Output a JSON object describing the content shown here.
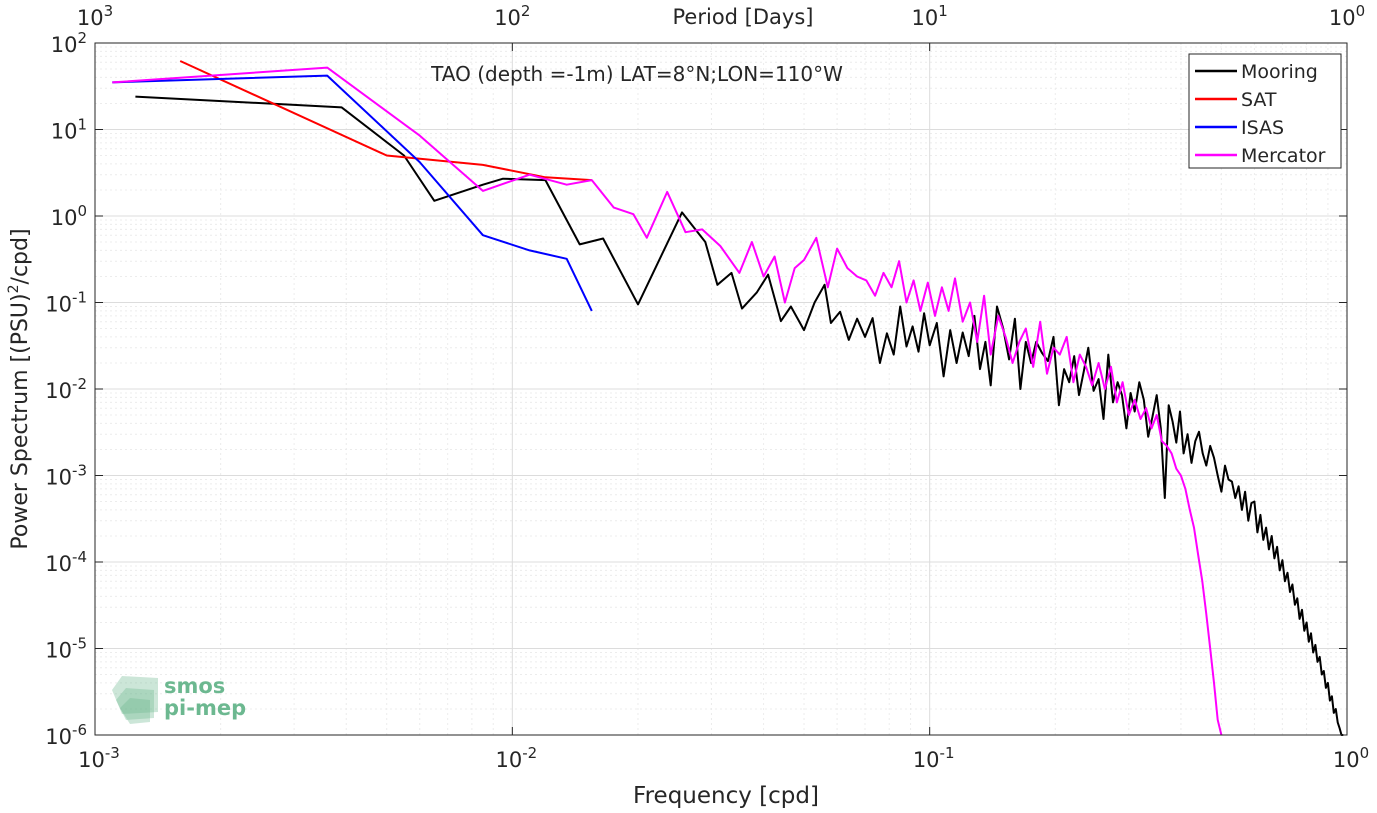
{
  "chart_data": {
    "type": "line",
    "title": "TAO (depth =-1m) LAT=8°N;LON=110°W",
    "xlabel": "Frequency [cpd]",
    "ylabel": "Power Spectrum [(PSU)",
    "ylabel_sup": "2",
    "ylabel_tail": "/cpd]",
    "top_xlabel": "Period [Days]",
    "x_scale": "log",
    "y_scale": "log",
    "xlim": [
      0.001,
      1
    ],
    "ylim": [
      1e-06,
      100
    ],
    "grid": true,
    "legend_position": "top-right",
    "x_ticks": [
      {
        "value": 0.001,
        "base": "10",
        "exp": "-3"
      },
      {
        "value": 0.01,
        "base": "10",
        "exp": "-2"
      },
      {
        "value": 0.1,
        "base": "10",
        "exp": "-1"
      },
      {
        "value": 1,
        "base": "10",
        "exp": "0"
      }
    ],
    "y_ticks": [
      {
        "value": 1e-06,
        "base": "10",
        "exp": "-6"
      },
      {
        "value": 1e-05,
        "base": "10",
        "exp": "-5"
      },
      {
        "value": 0.0001,
        "base": "10",
        "exp": "-4"
      },
      {
        "value": 0.001,
        "base": "10",
        "exp": "-3"
      },
      {
        "value": 0.01,
        "base": "10",
        "exp": "-2"
      },
      {
        "value": 0.1,
        "base": "10",
        "exp": "-1"
      },
      {
        "value": 1,
        "base": "10",
        "exp": "0"
      },
      {
        "value": 10,
        "base": "10",
        "exp": "1"
      },
      {
        "value": 100,
        "base": "10",
        "exp": "2"
      }
    ],
    "top_ticks": [
      {
        "value": 0.001,
        "base": "10",
        "exp": "3"
      },
      {
        "value": 0.01,
        "base": "10",
        "exp": "2"
      },
      {
        "value": 0.1,
        "base": "10",
        "exp": "1"
      },
      {
        "value": 1,
        "base": "10",
        "exp": "0"
      }
    ],
    "series": [
      {
        "name": "Mooring",
        "color": "#000000",
        "x": [
          0.00125,
          0.0039,
          0.0055,
          0.0065,
          0.0085,
          0.0095,
          0.012,
          0.0145,
          0.0165,
          0.02,
          0.0255,
          0.029,
          0.031,
          0.0335,
          0.0355,
          0.0385,
          0.041,
          0.044,
          0.0465,
          0.05,
          0.053,
          0.056,
          0.058,
          0.061,
          0.064,
          0.067,
          0.07,
          0.073,
          0.076,
          0.079,
          0.082,
          0.085,
          0.088,
          0.091,
          0.094,
          0.097,
          0.1,
          0.104,
          0.108,
          0.112,
          0.116,
          0.12,
          0.124,
          0.128,
          0.132,
          0.136,
          0.14,
          0.145,
          0.15,
          0.155,
          0.16,
          0.165,
          0.17,
          0.175,
          0.18,
          0.186,
          0.192,
          0.198,
          0.204,
          0.21,
          0.216,
          0.222,
          0.228,
          0.234,
          0.24,
          0.247,
          0.254,
          0.261,
          0.268,
          0.275,
          0.282,
          0.289,
          0.296,
          0.303,
          0.31,
          0.318,
          0.326,
          0.334,
          0.342,
          0.35,
          0.358,
          0.366,
          0.374,
          0.382,
          0.39,
          0.398,
          0.406,
          0.415,
          0.424,
          0.433,
          0.442,
          0.451,
          0.46,
          0.47,
          0.48,
          0.49,
          0.5,
          0.51,
          0.52,
          0.53,
          0.54,
          0.55,
          0.56,
          0.57,
          0.58,
          0.59,
          0.6,
          0.61,
          0.62,
          0.63,
          0.64,
          0.65,
          0.66,
          0.67,
          0.68,
          0.69,
          0.7,
          0.71,
          0.72,
          0.73,
          0.74,
          0.75,
          0.76,
          0.77,
          0.78,
          0.79,
          0.8,
          0.81,
          0.82,
          0.83,
          0.84,
          0.85,
          0.86,
          0.87,
          0.88,
          0.89,
          0.9,
          0.91,
          0.92,
          0.93,
          0.94,
          0.95,
          0.96,
          0.97,
          0.98
        ],
        "y": [
          24,
          18,
          5,
          1.5,
          2.3,
          2.7,
          2.6,
          0.47,
          0.55,
          0.095,
          1.1,
          0.5,
          0.16,
          0.22,
          0.085,
          0.13,
          0.21,
          0.061,
          0.09,
          0.048,
          0.1,
          0.16,
          0.058,
          0.078,
          0.037,
          0.065,
          0.04,
          0.066,
          0.02,
          0.044,
          0.025,
          0.09,
          0.031,
          0.053,
          0.027,
          0.075,
          0.032,
          0.058,
          0.014,
          0.048,
          0.02,
          0.045,
          0.024,
          0.07,
          0.017,
          0.035,
          0.011,
          0.09,
          0.05,
          0.022,
          0.065,
          0.01,
          0.035,
          0.02,
          0.035,
          0.026,
          0.021,
          0.04,
          0.0065,
          0.017,
          0.012,
          0.024,
          0.0085,
          0.016,
          0.03,
          0.0095,
          0.013,
          0.0045,
          0.025,
          0.007,
          0.012,
          0.0085,
          0.0035,
          0.009,
          0.0055,
          0.012,
          0.0075,
          0.0028,
          0.0048,
          0.0085,
          0.0035,
          0.00055,
          0.0065,
          0.0042,
          0.0024,
          0.0055,
          0.0018,
          0.003,
          0.0014,
          0.0025,
          0.0032,
          0.0018,
          0.0013,
          0.0022,
          0.0016,
          0.001,
          0.00065,
          0.0013,
          0.0009,
          0.00085,
          0.00055,
          0.00075,
          0.0004,
          0.00065,
          0.0003,
          0.00048,
          0.0005,
          0.00022,
          0.00035,
          0.00018,
          0.00025,
          0.00014,
          0.0002,
          0.00011,
          0.00015,
          8e-05,
          0.000105,
          6e-05,
          7.5e-05,
          4.5e-05,
          5.5e-05,
          3.2e-05,
          3.8e-05,
          2.2e-05,
          2.8e-05,
          1.6e-05,
          2e-05,
          1.2e-05,
          1.5e-05,
          9e-06,
          1.1e-05,
          7e-06,
          8e-06,
          5e-06,
          5.5e-06,
          3.5e-06,
          4e-06,
          2.5e-06,
          2.8e-06,
          1.8e-06,
          2e-06,
          1.4e-06,
          1.2e-06,
          1e-06,
          1e-06
        ]
      },
      {
        "name": "SAT",
        "color": "#ff0000",
        "x": [
          0.0016,
          0.005,
          0.0085,
          0.012,
          0.0155
        ],
        "y": [
          62,
          5,
          3.9,
          2.8,
          2.6
        ]
      },
      {
        "name": "ISAS",
        "color": "#0000ff",
        "x": [
          0.0011,
          0.0036,
          0.006,
          0.0085,
          0.011,
          0.0135,
          0.0155
        ],
        "y": [
          35,
          42,
          4.2,
          0.6,
          0.4,
          0.32,
          0.08
        ]
      },
      {
        "name": "Mercator",
        "color": "#ff00ff",
        "x": [
          0.0011,
          0.0036,
          0.006,
          0.0085,
          0.011,
          0.0135,
          0.0155,
          0.0175,
          0.0195,
          0.021,
          0.0235,
          0.026,
          0.0285,
          0.0315,
          0.035,
          0.0375,
          0.04,
          0.0425,
          0.045,
          0.0475,
          0.05,
          0.0535,
          0.057,
          0.06,
          0.0635,
          0.067,
          0.0705,
          0.074,
          0.0775,
          0.081,
          0.0845,
          0.088,
          0.0915,
          0.095,
          0.099,
          0.103,
          0.107,
          0.111,
          0.115,
          0.12,
          0.125,
          0.13,
          0.135,
          0.14,
          0.146,
          0.152,
          0.158,
          0.164,
          0.17,
          0.177,
          0.184,
          0.191,
          0.198,
          0.205,
          0.213,
          0.221,
          0.229,
          0.237,
          0.245,
          0.254,
          0.263,
          0.272,
          0.281,
          0.29,
          0.3,
          0.31,
          0.32,
          0.33,
          0.34,
          0.35,
          0.36,
          0.37,
          0.38,
          0.39,
          0.4,
          0.41,
          0.42,
          0.43,
          0.44,
          0.45,
          0.46,
          0.47,
          0.48,
          0.49,
          0.5
        ],
        "y": [
          35,
          52,
          8.5,
          1.95,
          3,
          2.3,
          2.6,
          1.25,
          1.05,
          0.56,
          1.9,
          0.65,
          0.7,
          0.45,
          0.22,
          0.5,
          0.2,
          0.34,
          0.1,
          0.25,
          0.31,
          0.56,
          0.15,
          0.42,
          0.25,
          0.2,
          0.18,
          0.12,
          0.22,
          0.15,
          0.3,
          0.1,
          0.18,
          0.08,
          0.17,
          0.07,
          0.15,
          0.08,
          0.19,
          0.06,
          0.1,
          0.035,
          0.12,
          0.025,
          0.07,
          0.04,
          0.02,
          0.035,
          0.05,
          0.018,
          0.06,
          0.015,
          0.03,
          0.025,
          0.04,
          0.012,
          0.025,
          0.018,
          0.011,
          0.02,
          0.01,
          0.018,
          0.007,
          0.012,
          0.005,
          0.0075,
          0.0045,
          0.006,
          0.0035,
          0.005,
          0.0025,
          0.0022,
          0.0018,
          0.0012,
          0.001,
          0.0007,
          0.0004,
          0.00025,
          0.00012,
          6e-05,
          2.5e-05,
          1e-05,
          4e-06,
          1.5e-06,
          1e-06
        ]
      }
    ]
  },
  "watermark": {
    "line1": "smos",
    "line2": "pi-mep",
    "color": "#6cb890"
  }
}
